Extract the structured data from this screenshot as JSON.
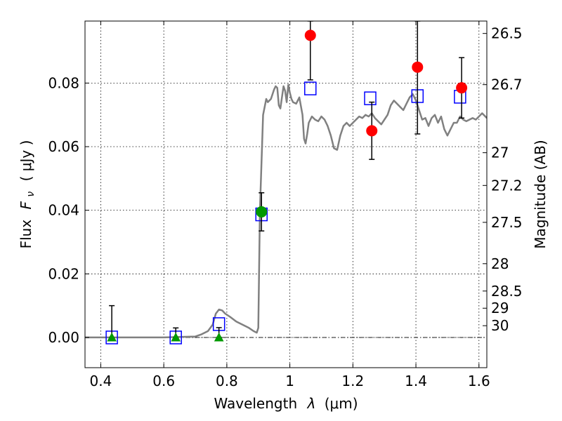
{
  "chart_data": {
    "type": "scatter",
    "xlabel_prefix": "Wavelength",
    "xlabel_symbol": "λ",
    "xlabel_unit": "(μm)",
    "ylabel_prefix": "Flux",
    "ylabel_symbol": "F",
    "ylabel_sub": "ν",
    "ylabel_unit": "( μJy )",
    "y2label": "Magnitude (AB)",
    "xlim": [
      0.35,
      1.625
    ],
    "ylim": [
      -0.0095,
      0.0995
    ],
    "x_ticks": [
      {
        "value": 0.4,
        "label": "0.4"
      },
      {
        "value": 0.6,
        "label": "0.6"
      },
      {
        "value": 0.8,
        "label": "0.8"
      },
      {
        "value": 1.0,
        "label": "1"
      },
      {
        "value": 1.2,
        "label": "1.2"
      },
      {
        "value": 1.4,
        "label": "1.4"
      },
      {
        "value": 1.6,
        "label": "1.6"
      }
    ],
    "y_ticks": [
      {
        "value": 0.0,
        "label": "0.00"
      },
      {
        "value": 0.02,
        "label": "0.02"
      },
      {
        "value": 0.04,
        "label": "0.04"
      },
      {
        "value": 0.06,
        "label": "0.06"
      },
      {
        "value": 0.08,
        "label": "0.08"
      }
    ],
    "mag_ticks": [
      {
        "flux": 0.0956,
        "label": "26.5"
      },
      {
        "flux": 0.0795,
        "label": "26.7"
      },
      {
        "flux": 0.0581,
        "label": "27"
      },
      {
        "flux": 0.0478,
        "label": "27.2"
      },
      {
        "flux": 0.0362,
        "label": "27.5"
      },
      {
        "flux": 0.0232,
        "label": "28"
      },
      {
        "flux": 0.0146,
        "label": "28.5"
      },
      {
        "flux": 0.0092,
        "label": "29"
      },
      {
        "flux": 0.0037,
        "label": "30"
      }
    ],
    "grid": true,
    "zero_line": true,
    "series": [
      {
        "kind": "line",
        "color": "#808080",
        "x": [
          0.35,
          0.5,
          0.6,
          0.7,
          0.72,
          0.74,
          0.755,
          0.765,
          0.775,
          0.785,
          0.795,
          0.81,
          0.83,
          0.85,
          0.87,
          0.885,
          0.895,
          0.9,
          0.905,
          0.915,
          0.925,
          0.93,
          0.94,
          0.95,
          0.955,
          0.96,
          0.965,
          0.97,
          0.98,
          0.985,
          0.99,
          0.995,
          1.0,
          1.005,
          1.01,
          1.02,
          1.03,
          1.04,
          1.045,
          1.05,
          1.055,
          1.06,
          1.07,
          1.08,
          1.09,
          1.1,
          1.11,
          1.12,
          1.13,
          1.14,
          1.15,
          1.16,
          1.17,
          1.18,
          1.19,
          1.2,
          1.21,
          1.22,
          1.23,
          1.24,
          1.25,
          1.26,
          1.27,
          1.28,
          1.29,
          1.3,
          1.31,
          1.32,
          1.33,
          1.34,
          1.35,
          1.36,
          1.37,
          1.38,
          1.39,
          1.4,
          1.41,
          1.42,
          1.43,
          1.44,
          1.45,
          1.46,
          1.47,
          1.48,
          1.49,
          1.5,
          1.51,
          1.52,
          1.53,
          1.54,
          1.55,
          1.56,
          1.57,
          1.58,
          1.59,
          1.6,
          1.61,
          1.625
        ],
        "values": [
          0.0,
          0.0,
          0.0,
          0.0003,
          0.001,
          0.002,
          0.004,
          0.0075,
          0.0088,
          0.0085,
          0.0075,
          0.0065,
          0.005,
          0.004,
          0.003,
          0.002,
          0.0015,
          0.003,
          0.04,
          0.07,
          0.075,
          0.074,
          0.075,
          0.078,
          0.079,
          0.0785,
          0.073,
          0.072,
          0.079,
          0.0775,
          0.074,
          0.0795,
          0.077,
          0.075,
          0.074,
          0.0735,
          0.0755,
          0.07,
          0.0625,
          0.061,
          0.064,
          0.0675,
          0.0695,
          0.0685,
          0.068,
          0.0695,
          0.0685,
          0.0665,
          0.0635,
          0.0595,
          0.059,
          0.0635,
          0.0665,
          0.0675,
          0.0665,
          0.0675,
          0.0685,
          0.0695,
          0.069,
          0.07,
          0.0695,
          0.0705,
          0.069,
          0.068,
          0.067,
          0.0685,
          0.07,
          0.073,
          0.0745,
          0.0735,
          0.0725,
          0.0715,
          0.0735,
          0.0755,
          0.0765,
          0.0745,
          0.0715,
          0.0685,
          0.069,
          0.0665,
          0.069,
          0.07,
          0.0675,
          0.0695,
          0.0655,
          0.0635,
          0.0655,
          0.0675,
          0.0675,
          0.0695,
          0.0685,
          0.068,
          0.0685,
          0.069,
          0.0685,
          0.0695,
          0.0705,
          0.069
        ]
      },
      {
        "kind": "squares",
        "color": "#0000ff",
        "x": [
          0.435,
          0.638,
          0.775,
          0.91,
          1.065,
          1.255,
          1.405,
          1.54
        ],
        "values": [
          0.0,
          0.0,
          0.0042,
          0.0387,
          0.0783,
          0.0752,
          0.0759,
          0.0757
        ]
      },
      {
        "kind": "errorbars",
        "color": "#000000",
        "x": [
          0.435,
          0.638,
          0.775,
          0.91,
          1.065,
          1.26,
          1.405,
          1.545
        ],
        "values": [
          0.0,
          0.0015,
          0.0016,
          0.0395,
          0.0955,
          0.065,
          0.0855,
          0.0785
        ],
        "lo": [
          0.0,
          0.0,
          0.0,
          0.0335,
          0.081,
          0.056,
          0.064,
          0.069
        ],
        "hi": [
          0.01,
          0.003,
          0.0031,
          0.0455,
          0.0995,
          0.074,
          0.0995,
          0.088
        ]
      },
      {
        "kind": "circles",
        "color": "#ff0000",
        "x": [
          1.065,
          1.26,
          1.405,
          1.545
        ],
        "values": [
          0.095,
          0.065,
          0.085,
          0.0785
        ]
      },
      {
        "kind": "circles",
        "color": "#009900",
        "x": [
          0.91
        ],
        "values": [
          0.0395
        ]
      },
      {
        "kind": "triangles",
        "color": "#009900",
        "x": [
          0.435,
          0.638,
          0.775
        ],
        "values": [
          0.0,
          0.0,
          0.0
        ]
      }
    ]
  }
}
